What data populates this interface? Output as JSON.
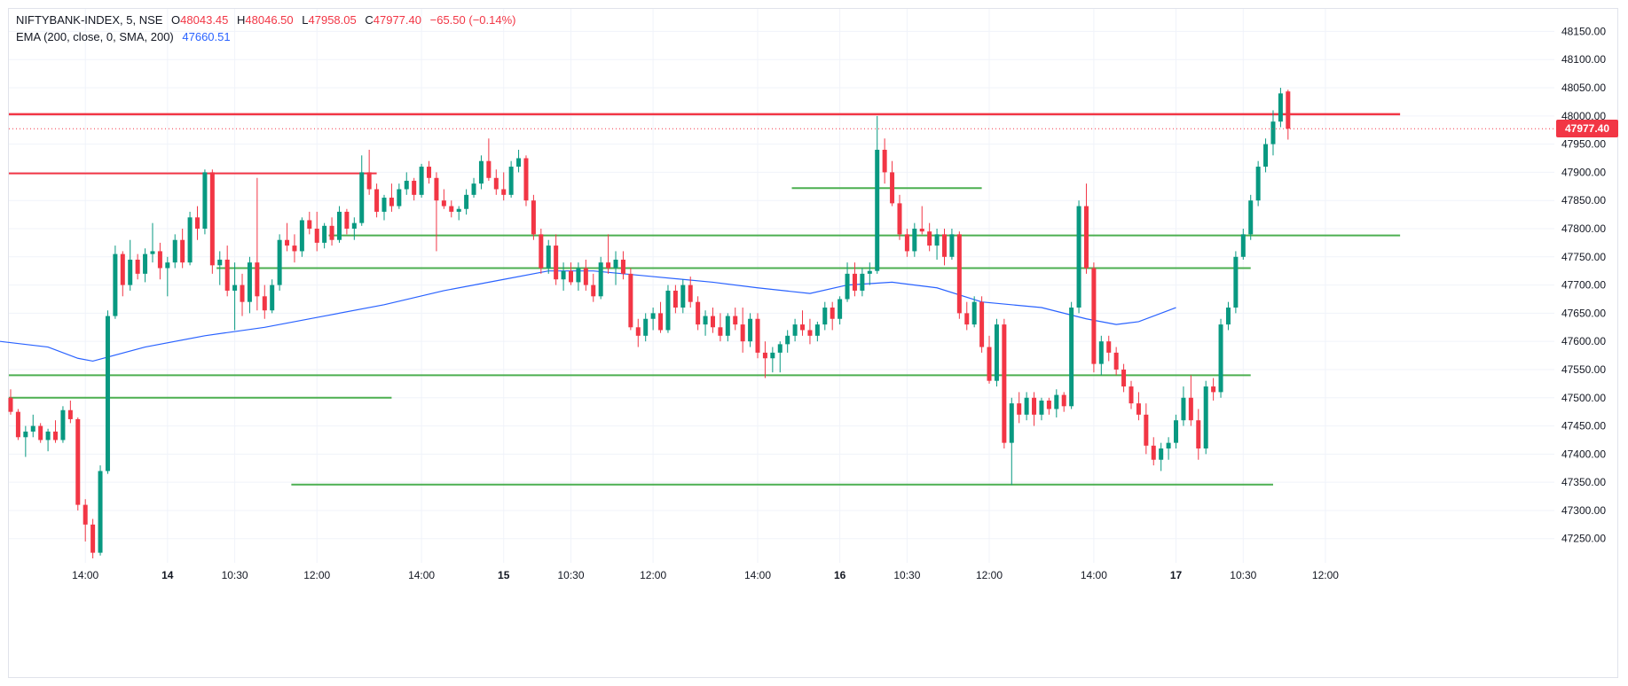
{
  "legend": {
    "symbol": "NIFTYBANK-INDEX, 5, NSE",
    "open_key": "O",
    "open": "48043.45",
    "high_key": "H",
    "high": "48046.50",
    "low_key": "L",
    "low": "47958.05",
    "close_key": "C",
    "close": "47977.40",
    "change": "−65.50 (−0.14%)",
    "indicator": "EMA (200, close, 0, SMA, 200)",
    "indicator_value": "47660.51"
  },
  "last_price_label": "47977.40",
  "colors": {
    "up": "#089981",
    "down": "#f23645",
    "ema": "#2962ff",
    "support": "#4caf50",
    "resistance": "#f23645",
    "grid": "#f0f3fa",
    "axis_text": "#131722"
  },
  "chart_data": {
    "type": "candlestick",
    "y_axis_ticks": [
      "48150.00",
      "48100.00",
      "48050.00",
      "48000.00",
      "47950.00",
      "47900.00",
      "47850.00",
      "47800.00",
      "47750.00",
      "47700.00",
      "47650.00",
      "47600.00",
      "47550.00",
      "47500.00",
      "47450.00",
      "47400.00",
      "47350.00",
      "47300.00",
      "47250.00"
    ],
    "ylim": [
      47215,
      48190
    ],
    "x_axis_ticks": [
      {
        "label": "14:00",
        "index": 10
      },
      {
        "label": "14",
        "index": 21
      },
      {
        "label": "10:30",
        "index": 30
      },
      {
        "label": "12:00",
        "index": 41
      },
      {
        "label": "14:00",
        "index": 55
      },
      {
        "label": "15",
        "index": 66
      },
      {
        "label": "10:30",
        "index": 75
      },
      {
        "label": "12:00",
        "index": 86
      },
      {
        "label": "14:00",
        "index": 100
      },
      {
        "label": "16",
        "index": 111
      },
      {
        "label": "10:30",
        "index": 120
      },
      {
        "label": "12:00",
        "index": 131
      },
      {
        "label": "14:00",
        "index": 145
      },
      {
        "label": "17",
        "index": 156
      },
      {
        "label": "10:30",
        "index": 165
      },
      {
        "label": "12:00",
        "index": 176
      }
    ],
    "bold_x_labels": [
      "14",
      "15",
      "16",
      "17"
    ],
    "horizontal_lines": [
      {
        "kind": "resistance",
        "price": 48003,
        "from": 0,
        "to": 186
      },
      {
        "kind": "resistance",
        "price": 47898,
        "from": 0,
        "to": 49
      },
      {
        "kind": "support",
        "price": 47872,
        "from": 106,
        "to": 130
      },
      {
        "kind": "support",
        "price": 47788,
        "from": 44,
        "to": 186
      },
      {
        "kind": "support",
        "price": 47730,
        "from": 29,
        "to": 166
      },
      {
        "kind": "support",
        "price": 47540,
        "from": 0,
        "to": 166
      },
      {
        "kind": "support",
        "price": 47500,
        "from": 0,
        "to": 51
      },
      {
        "kind": "support",
        "price": 47346,
        "from": 39,
        "to": 169
      }
    ],
    "last_price": 47977.4,
    "candles": [
      [
        47500,
        47515,
        47470,
        47475
      ],
      [
        47475,
        47480,
        47425,
        47430
      ],
      [
        47430,
        47450,
        47395,
        47440
      ],
      [
        47440,
        47470,
        47430,
        47450
      ],
      [
        47450,
        47455,
        47420,
        47425
      ],
      [
        47425,
        47445,
        47405,
        47440
      ],
      [
        47440,
        47460,
        47420,
        47425
      ],
      [
        47425,
        47485,
        47420,
        47478
      ],
      [
        47478,
        47495,
        47455,
        47462
      ],
      [
        47462,
        47465,
        47300,
        47310
      ],
      [
        47310,
        47320,
        47245,
        47275
      ],
      [
        47275,
        47285,
        47215,
        47225
      ],
      [
        47225,
        47380,
        47220,
        47370
      ],
      [
        47370,
        47655,
        47365,
        47645
      ],
      [
        47645,
        47770,
        47640,
        47755
      ],
      [
        47755,
        47760,
        47680,
        47700
      ],
      [
        47700,
        47780,
        47690,
        47745
      ],
      [
        47745,
        47755,
        47710,
        47720
      ],
      [
        47720,
        47765,
        47705,
        47755
      ],
      [
        47755,
        47810,
        47740,
        47760
      ],
      [
        47760,
        47775,
        47710,
        47730
      ],
      [
        47730,
        47750,
        47680,
        47740
      ],
      [
        47740,
        47790,
        47730,
        47780
      ],
      [
        47780,
        47800,
        47730,
        47740
      ],
      [
        47740,
        47830,
        47735,
        47820
      ],
      [
        47820,
        47840,
        47780,
        47800
      ],
      [
        47800,
        47905,
        47790,
        47900
      ],
      [
        47900,
        47905,
        47720,
        47735
      ],
      [
        47735,
        47760,
        47700,
        47745
      ],
      [
        47745,
        47770,
        47680,
        47690
      ],
      [
        47690,
        47740,
        47620,
        47700
      ],
      [
        47700,
        47720,
        47645,
        47670
      ],
      [
        47670,
        47750,
        47650,
        47740
      ],
      [
        47740,
        47890,
        47655,
        47680
      ],
      [
        47680,
        47700,
        47640,
        47655
      ],
      [
        47655,
        47710,
        47650,
        47700
      ],
      [
        47700,
        47790,
        47690,
        47780
      ],
      [
        47780,
        47810,
        47760,
        47770
      ],
      [
        47770,
        47790,
        47740,
        47760
      ],
      [
        47760,
        47820,
        47750,
        47815
      ],
      [
        47815,
        47830,
        47790,
        47800
      ],
      [
        47800,
        47830,
        47760,
        47775
      ],
      [
        47775,
        47810,
        47765,
        47805
      ],
      [
        47805,
        47820,
        47770,
        47780
      ],
      [
        47780,
        47840,
        47775,
        47830
      ],
      [
        47830,
        47835,
        47790,
        47800
      ],
      [
        47800,
        47820,
        47780,
        47810
      ],
      [
        47810,
        47930,
        47805,
        47900
      ],
      [
        47900,
        47940,
        47860,
        47870
      ],
      [
        47870,
        47880,
        47820,
        47830
      ],
      [
        47830,
        47860,
        47815,
        47855
      ],
      [
        47855,
        47880,
        47830,
        47840
      ],
      [
        47840,
        47880,
        47835,
        47870
      ],
      [
        47870,
        47900,
        47860,
        47885
      ],
      [
        47885,
        47890,
        47850,
        47860
      ],
      [
        47860,
        47915,
        47855,
        47910
      ],
      [
        47910,
        47920,
        47880,
        47890
      ],
      [
        47890,
        47900,
        47760,
        47850
      ],
      [
        47850,
        47870,
        47835,
        47840
      ],
      [
        47840,
        47850,
        47820,
        47830
      ],
      [
        47830,
        47840,
        47815,
        47835
      ],
      [
        47835,
        47870,
        47825,
        47860
      ],
      [
        47860,
        47890,
        47855,
        47880
      ],
      [
        47880,
        47930,
        47870,
        47920
      ],
      [
        47920,
        47960,
        47885,
        47890
      ],
      [
        47890,
        47905,
        47860,
        47870
      ],
      [
        47870,
        47900,
        47850,
        47860
      ],
      [
        47860,
        47920,
        47855,
        47910
      ],
      [
        47910,
        47940,
        47900,
        47925
      ],
      [
        47925,
        47930,
        47840,
        47850
      ],
      [
        47850,
        47860,
        47780,
        47790
      ],
      [
        47790,
        47800,
        47720,
        47730
      ],
      [
        47730,
        47780,
        47720,
        47770
      ],
      [
        47770,
        47790,
        47700,
        47710
      ],
      [
        47710,
        47740,
        47690,
        47725
      ],
      [
        47725,
        47740,
        47700,
        47705
      ],
      [
        47705,
        47740,
        47690,
        47730
      ],
      [
        47730,
        47745,
        47690,
        47700
      ],
      [
        47700,
        47720,
        47670,
        47680
      ],
      [
        47680,
        47750,
        47675,
        47740
      ],
      [
        47740,
        47790,
        47720,
        47730
      ],
      [
        47730,
        47760,
        47700,
        47745
      ],
      [
        47745,
        47760,
        47710,
        47720
      ],
      [
        47720,
        47730,
        47620,
        47625
      ],
      [
        47625,
        47640,
        47590,
        47610
      ],
      [
        47610,
        47650,
        47600,
        47640
      ],
      [
        47640,
        47660,
        47620,
        47650
      ],
      [
        47650,
        47670,
        47615,
        47620
      ],
      [
        47620,
        47700,
        47615,
        47690
      ],
      [
        47690,
        47700,
        47650,
        47660
      ],
      [
        47660,
        47710,
        47650,
        47700
      ],
      [
        47700,
        47715,
        47660,
        47670
      ],
      [
        47670,
        47680,
        47620,
        47630
      ],
      [
        47630,
        47655,
        47610,
        47645
      ],
      [
        47645,
        47660,
        47615,
        47625
      ],
      [
        47625,
        47650,
        47600,
        47610
      ],
      [
        47610,
        47650,
        47600,
        47645
      ],
      [
        47645,
        47660,
        47620,
        47630
      ],
      [
        47630,
        47660,
        47580,
        47600
      ],
      [
        47600,
        47650,
        47590,
        47640
      ],
      [
        47640,
        47650,
        47570,
        47580
      ],
      [
        47580,
        47600,
        47535,
        47570
      ],
      [
        47570,
        47590,
        47545,
        47580
      ],
      [
        47580,
        47600,
        47545,
        47595
      ],
      [
        47595,
        47620,
        47580,
        47610
      ],
      [
        47610,
        47640,
        47600,
        47630
      ],
      [
        47630,
        47655,
        47610,
        47620
      ],
      [
        47620,
        47640,
        47595,
        47610
      ],
      [
        47610,
        47635,
        47600,
        47630
      ],
      [
        47630,
        47670,
        47620,
        47660
      ],
      [
        47660,
        47670,
        47620,
        47640
      ],
      [
        47640,
        47680,
        47630,
        47675
      ],
      [
        47675,
        47740,
        47670,
        47720
      ],
      [
        47720,
        47740,
        47680,
        47690
      ],
      [
        47690,
        47730,
        47680,
        47720
      ],
      [
        47720,
        47740,
        47700,
        47725
      ],
      [
        47725,
        48000,
        47720,
        47940
      ],
      [
        47940,
        47960,
        47880,
        47900
      ],
      [
        47900,
        47920,
        47840,
        47845
      ],
      [
        47845,
        47860,
        47780,
        47790
      ],
      [
        47790,
        47800,
        47750,
        47760
      ],
      [
        47760,
        47810,
        47750,
        47800
      ],
      [
        47800,
        47840,
        47790,
        47795
      ],
      [
        47795,
        47810,
        47760,
        47770
      ],
      [
        47770,
        47800,
        47745,
        47790
      ],
      [
        47790,
        47800,
        47735,
        47750
      ],
      [
        47750,
        47800,
        47745,
        47790
      ],
      [
        47790,
        47795,
        47640,
        47650
      ],
      [
        47650,
        47670,
        47620,
        47630
      ],
      [
        47630,
        47680,
        47625,
        47670
      ],
      [
        47670,
        47680,
        47580,
        47590
      ],
      [
        47590,
        47610,
        47525,
        47530
      ],
      [
        47530,
        47640,
        47520,
        47630
      ],
      [
        47630,
        47640,
        47410,
        47420
      ],
      [
        47420,
        47500,
        47345,
        47490
      ],
      [
        47490,
        47510,
        47455,
        47470
      ],
      [
        47470,
        47510,
        47460,
        47500
      ],
      [
        47500,
        47510,
        47450,
        47470
      ],
      [
        47470,
        47500,
        47460,
        47495
      ],
      [
        47495,
        47500,
        47470,
        47480
      ],
      [
        47480,
        47515,
        47465,
        47505
      ],
      [
        47505,
        47510,
        47475,
        47485
      ],
      [
        47485,
        47670,
        47480,
        47660
      ],
      [
        47660,
        47850,
        47650,
        47840
      ],
      [
        47840,
        47880,
        47720,
        47730
      ],
      [
        47730,
        47740,
        47545,
        47560
      ],
      [
        47560,
        47610,
        47540,
        47600
      ],
      [
        47600,
        47610,
        47565,
        47580
      ],
      [
        47580,
        47590,
        47540,
        47550
      ],
      [
        47550,
        47560,
        47510,
        47520
      ],
      [
        47520,
        47530,
        47480,
        47490
      ],
      [
        47490,
        47510,
        47460,
        47470
      ],
      [
        47470,
        47490,
        47400,
        47415
      ],
      [
        47415,
        47430,
        47380,
        47390
      ],
      [
        47390,
        47420,
        47370,
        47410
      ],
      [
        47410,
        47430,
        47390,
        47420
      ],
      [
        47420,
        47470,
        47410,
        47460
      ],
      [
        47460,
        47520,
        47450,
        47500
      ],
      [
        47500,
        47540,
        47450,
        47460
      ],
      [
        47460,
        47480,
        47390,
        47410
      ],
      [
        47410,
        47530,
        47400,
        47520
      ],
      [
        47520,
        47535,
        47495,
        47510
      ],
      [
        47510,
        47640,
        47500,
        47630
      ],
      [
        47630,
        47670,
        47620,
        47660
      ],
      [
        47660,
        47760,
        47650,
        47750
      ],
      [
        47750,
        47800,
        47745,
        47790
      ],
      [
        47790,
        47860,
        47780,
        47850
      ],
      [
        47850,
        47920,
        47840,
        47910
      ],
      [
        47910,
        47960,
        47900,
        47950
      ],
      [
        47950,
        48010,
        47930,
        47990
      ],
      [
        47990,
        48050,
        47980,
        48040
      ],
      [
        48043.45,
        48046.5,
        47958.05,
        47977.4
      ]
    ],
    "ema": [
      [
        0,
        47600
      ],
      [
        5,
        47590
      ],
      [
        9,
        47570
      ],
      [
        11,
        47565
      ],
      [
        18,
        47590
      ],
      [
        26,
        47610
      ],
      [
        34,
        47625
      ],
      [
        42,
        47645
      ],
      [
        50,
        47665
      ],
      [
        58,
        47690
      ],
      [
        66,
        47710
      ],
      [
        72,
        47725
      ],
      [
        78,
        47725
      ],
      [
        86,
        47715
      ],
      [
        94,
        47705
      ],
      [
        100,
        47695
      ],
      [
        107,
        47685
      ],
      [
        112,
        47700
      ],
      [
        118,
        47705
      ],
      [
        124,
        47695
      ],
      [
        130,
        47670
      ],
      [
        138,
        47660
      ],
      [
        144,
        47640
      ],
      [
        148,
        47630
      ],
      [
        151,
        47635
      ],
      [
        156,
        47660
      ]
    ]
  }
}
